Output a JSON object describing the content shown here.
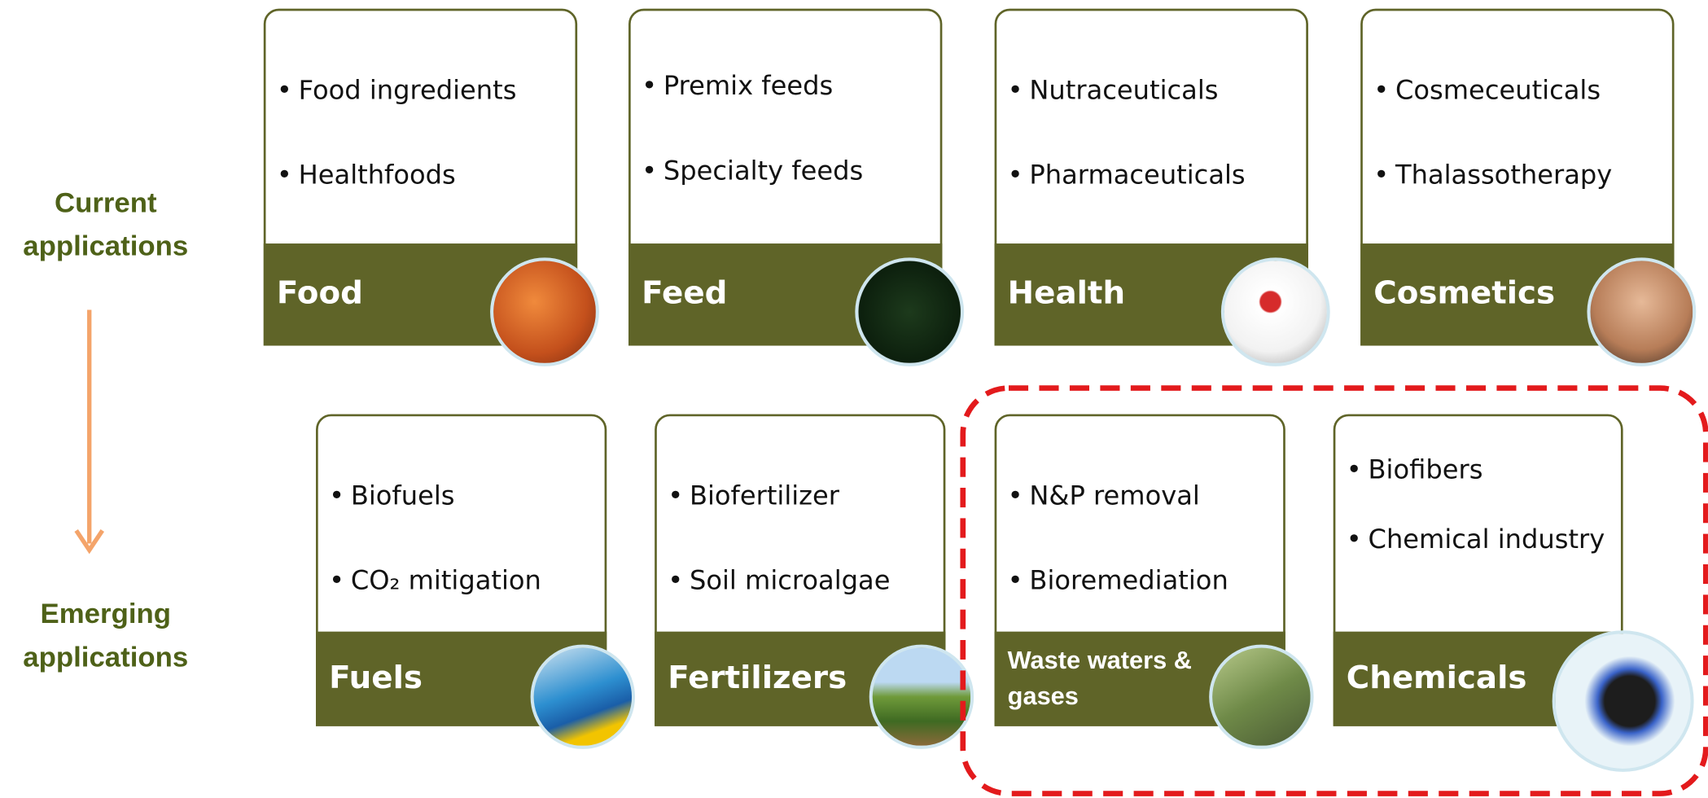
{
  "labels": {
    "current": "Current applications",
    "emerging": "Emerging applications"
  },
  "cards": [
    {
      "title": "Food",
      "items": [
        "Food ingredients",
        "Healthfoods"
      ]
    },
    {
      "title": "Feed",
      "items": [
        "Premix feeds",
        "Specialty feeds"
      ]
    },
    {
      "title": "Health",
      "items": [
        "Nutraceuticals",
        "Pharmaceuticals"
      ]
    },
    {
      "title": "Cosmetics",
      "items": [
        "Cosmeceuticals",
        "Thalassotherapy"
      ]
    },
    {
      "title": "Fuels",
      "items": [
        "Biofuels",
        "CO₂ mitigation"
      ]
    },
    {
      "title": "Fertilizers",
      "items": [
        "Biofertilizer",
        "Soil microalgae"
      ]
    },
    {
      "title": "Waste waters & gases",
      "items": [
        "N&P removal",
        "Bioremediation"
      ]
    },
    {
      "title": "Chemicals",
      "items": [
        "Biofibers",
        "Chemical industry"
      ]
    }
  ]
}
